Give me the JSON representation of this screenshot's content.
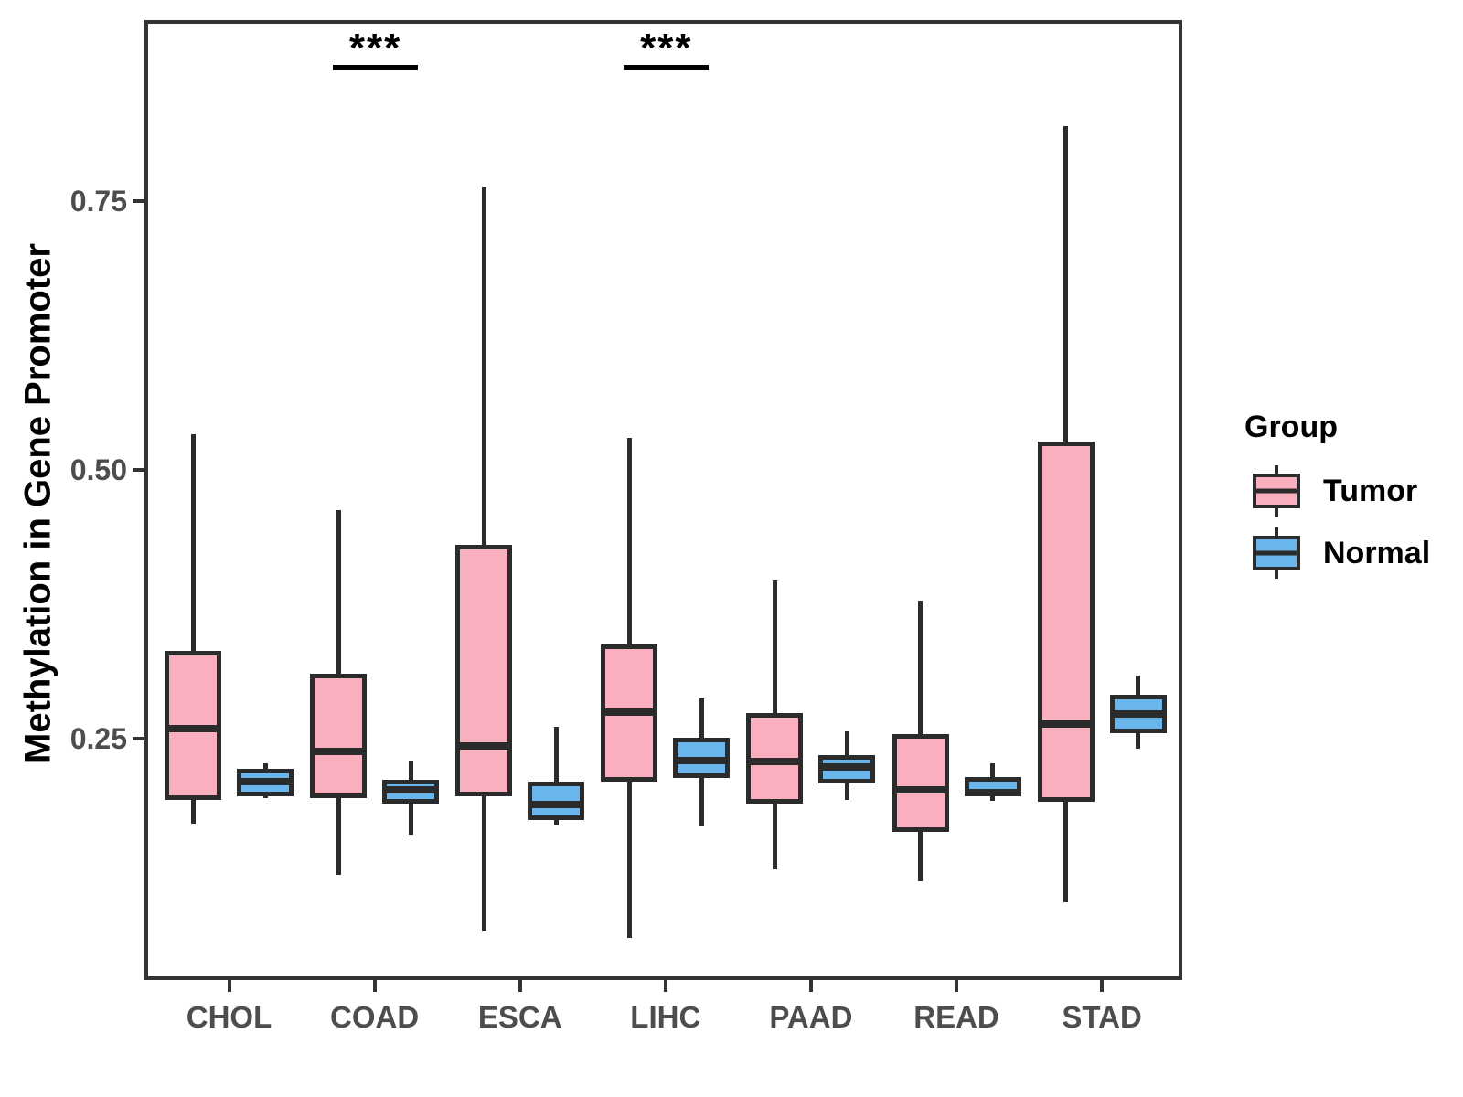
{
  "chart_data": {
    "type": "boxplot",
    "title": "",
    "xlabel": "",
    "ylabel": "Methylation in Gene Promoter",
    "categories": [
      "CHOL",
      "COAD",
      "ESCA",
      "LIHC",
      "PAAD",
      "READ",
      "STAD"
    ],
    "yticks": [
      0.25,
      0.5,
      0.75
    ],
    "ytick_labels": [
      "0.25",
      "0.50",
      "0.75"
    ],
    "ylim": [
      0.0255,
      0.9184
    ],
    "grid": "off",
    "legend_position": "right",
    "colors": {
      "tumor_fill": "#F9AFBE",
      "normal_fill": "#68B6EC",
      "box_ink": "#2B2B2B",
      "axis_label_gray": "#4D4D4D"
    },
    "series": [
      {
        "name": "Tumor",
        "color": "#F9AFBE",
        "boxes": [
          {
            "category": "CHOL",
            "whisker_low": 0.171,
            "q1": 0.193,
            "median": 0.259,
            "q3": 0.332,
            "whisker_high": 0.533
          },
          {
            "category": "COAD",
            "whisker_low": 0.123,
            "q1": 0.195,
            "median": 0.238,
            "q3": 0.31,
            "whisker_high": 0.463
          },
          {
            "category": "ESCA",
            "whisker_low": 0.071,
            "q1": 0.196,
            "median": 0.243,
            "q3": 0.43,
            "whisker_high": 0.763
          },
          {
            "category": "LIHC",
            "whisker_low": 0.065,
            "q1": 0.21,
            "median": 0.275,
            "q3": 0.338,
            "whisker_high": 0.53
          },
          {
            "category": "PAAD",
            "whisker_low": 0.128,
            "q1": 0.19,
            "median": 0.229,
            "q3": 0.274,
            "whisker_high": 0.397
          },
          {
            "category": "READ",
            "whisker_low": 0.117,
            "q1": 0.163,
            "median": 0.202,
            "q3": 0.254,
            "whisker_high": 0.378
          },
          {
            "category": "STAD",
            "whisker_low": 0.098,
            "q1": 0.191,
            "median": 0.264,
            "q3": 0.526,
            "whisker_high": 0.82
          }
        ]
      },
      {
        "name": "Normal",
        "color": "#68B6EC",
        "boxes": [
          {
            "category": "CHOL",
            "whisker_low": 0.195,
            "q1": 0.196,
            "median": 0.21,
            "q3": 0.222,
            "whisker_high": 0.227
          },
          {
            "category": "COAD",
            "whisker_low": 0.161,
            "q1": 0.19,
            "median": 0.202,
            "q3": 0.212,
            "whisker_high": 0.23
          },
          {
            "category": "ESCA",
            "whisker_low": 0.169,
            "q1": 0.174,
            "median": 0.189,
            "q3": 0.21,
            "whisker_high": 0.261
          },
          {
            "category": "LIHC",
            "whisker_low": 0.168,
            "q1": 0.213,
            "median": 0.23,
            "q3": 0.251,
            "whisker_high": 0.287
          },
          {
            "category": "PAAD",
            "whisker_low": 0.193,
            "q1": 0.208,
            "median": 0.224,
            "q3": 0.235,
            "whisker_high": 0.257
          },
          {
            "category": "READ",
            "whisker_low": 0.192,
            "q1": 0.196,
            "median": 0.2,
            "q3": 0.214,
            "whisker_high": 0.227
          },
          {
            "category": "STAD",
            "whisker_low": 0.241,
            "q1": 0.255,
            "median": 0.273,
            "q3": 0.291,
            "whisker_high": 0.309
          }
        ]
      }
    ],
    "significance": [
      {
        "category": "COAD",
        "label": "***"
      },
      {
        "category": "LIHC",
        "label": "***"
      }
    ],
    "legend": {
      "title": "Group",
      "entries": [
        {
          "label": "Tumor",
          "color": "#F9AFBE"
        },
        {
          "label": "Normal",
          "color": "#68B6EC"
        }
      ]
    }
  }
}
